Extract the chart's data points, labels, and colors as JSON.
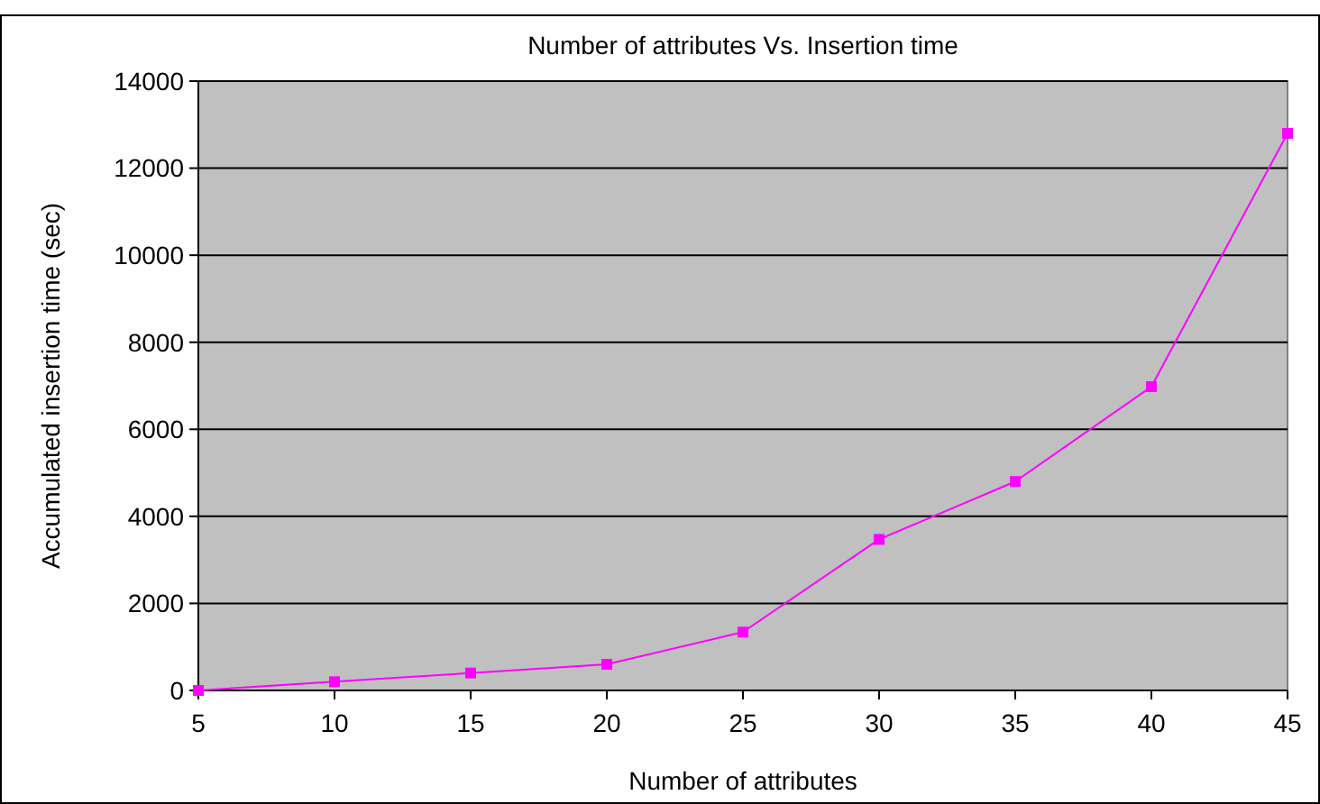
{
  "chart_data": {
    "type": "line",
    "title": "Number of attributes Vs. Insertion time",
    "xlabel": "Number of attributes",
    "ylabel": "Accumulated insertion time (sec)",
    "x": [
      5,
      10,
      15,
      20,
      25,
      30,
      35,
      40,
      45
    ],
    "series": [
      {
        "color": "#ff00ff",
        "values": [
          0,
          200,
          400,
          600,
          1340,
          3470,
          4800,
          6980,
          12800
        ]
      }
    ],
    "xlim": [
      5,
      45
    ],
    "xticks": [
      5,
      10,
      15,
      20,
      25,
      30,
      35,
      40,
      45
    ],
    "ylim": [
      0,
      14000
    ],
    "yticks": [
      0,
      2000,
      4000,
      6000,
      8000,
      10000,
      12000,
      14000
    ],
    "grid": "y",
    "marker": "square",
    "line_style": "solid"
  }
}
